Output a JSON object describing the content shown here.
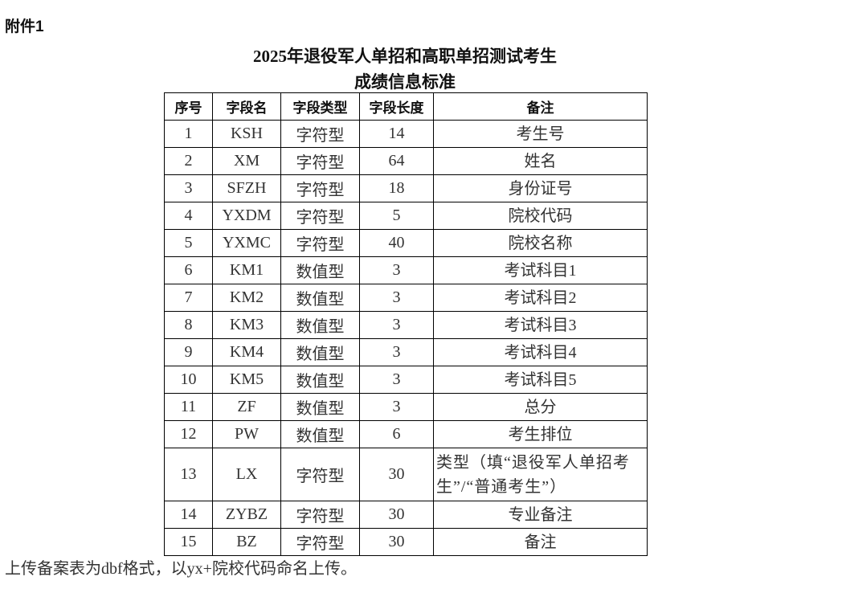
{
  "attachment_label": "附件1",
  "title_line1": "2025年退役军人单招和高职单招测试考生",
  "title_line2": "成绩信息标准",
  "table": {
    "headers": [
      "序号",
      "字段名",
      "字段类型",
      "字段长度",
      "备注"
    ],
    "rows": [
      [
        "1",
        "KSH",
        "字符型",
        "14",
        "考生号"
      ],
      [
        "2",
        "XM",
        "字符型",
        "64",
        "姓名"
      ],
      [
        "3",
        "SFZH",
        "字符型",
        "18",
        "身份证号"
      ],
      [
        "4",
        "YXDM",
        "字符型",
        "5",
        "院校代码"
      ],
      [
        "5",
        "YXMC",
        "字符型",
        "40",
        "院校名称"
      ],
      [
        "6",
        "KM1",
        "数值型",
        "3",
        "考试科目1"
      ],
      [
        "7",
        "KM2",
        "数值型",
        "3",
        "考试科目2"
      ],
      [
        "8",
        "KM3",
        "数值型",
        "3",
        "考试科目3"
      ],
      [
        "9",
        "KM4",
        "数值型",
        "3",
        "考试科目4"
      ],
      [
        "10",
        "KM5",
        "数值型",
        "3",
        "考试科目5"
      ],
      [
        "11",
        "ZF",
        "数值型",
        "3",
        "总分"
      ],
      [
        "12",
        "PW",
        "数值型",
        "6",
        "考生排位"
      ],
      [
        "13",
        "LX",
        "字符型",
        "30",
        "类型（填“退役军人单招考生”/“普通考生”）"
      ],
      [
        "14",
        "ZYBZ",
        "字符型",
        "30",
        "专业备注"
      ],
      [
        "15",
        "BZ",
        "字符型",
        "30",
        "备注"
      ]
    ]
  },
  "footnote": "上传备案表为dbf格式，以yx+院校代码命名上传。"
}
